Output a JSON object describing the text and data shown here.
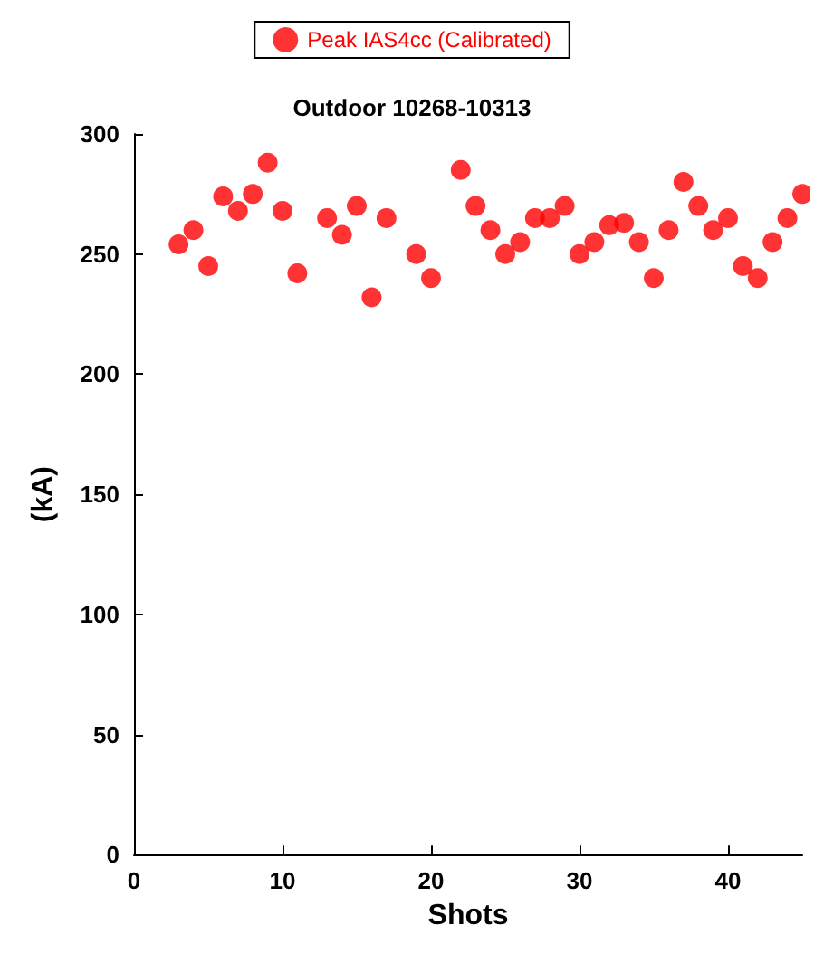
{
  "chart_data": {
    "type": "scatter",
    "title": "Outdoor 10268-10313",
    "xlabel": "Shots",
    "ylabel": "(kA)",
    "x": [
      3,
      4,
      5,
      6,
      7,
      8,
      9,
      10,
      11,
      13,
      14,
      15,
      16,
      17,
      19,
      20,
      22,
      23,
      24,
      25,
      26,
      27,
      28,
      29,
      30,
      31,
      32,
      33,
      34,
      35,
      36,
      37,
      38,
      39,
      40,
      41,
      42,
      43,
      44,
      45
    ],
    "series": [
      {
        "name": "Peak IAS4cc (Calibrated)",
        "color": "#ff0000",
        "values": [
          254,
          260,
          245,
          274,
          268,
          275,
          288,
          268,
          242,
          265,
          258,
          270,
          232,
          265,
          250,
          240,
          285,
          270,
          260,
          250,
          255,
          265,
          265,
          270,
          250,
          255,
          262,
          263,
          255,
          240,
          260,
          280,
          270,
          260,
          265,
          245,
          240,
          255,
          265,
          275
        ]
      }
    ],
    "xlim": [
      0,
      45
    ],
    "xticks": [
      0,
      10,
      20,
      30,
      40
    ],
    "ylim": [
      0,
      300
    ],
    "yticks": [
      0,
      50,
      100,
      150,
      200,
      250,
      300
    ],
    "marker": "circle",
    "legend": "top",
    "grid": false
  }
}
